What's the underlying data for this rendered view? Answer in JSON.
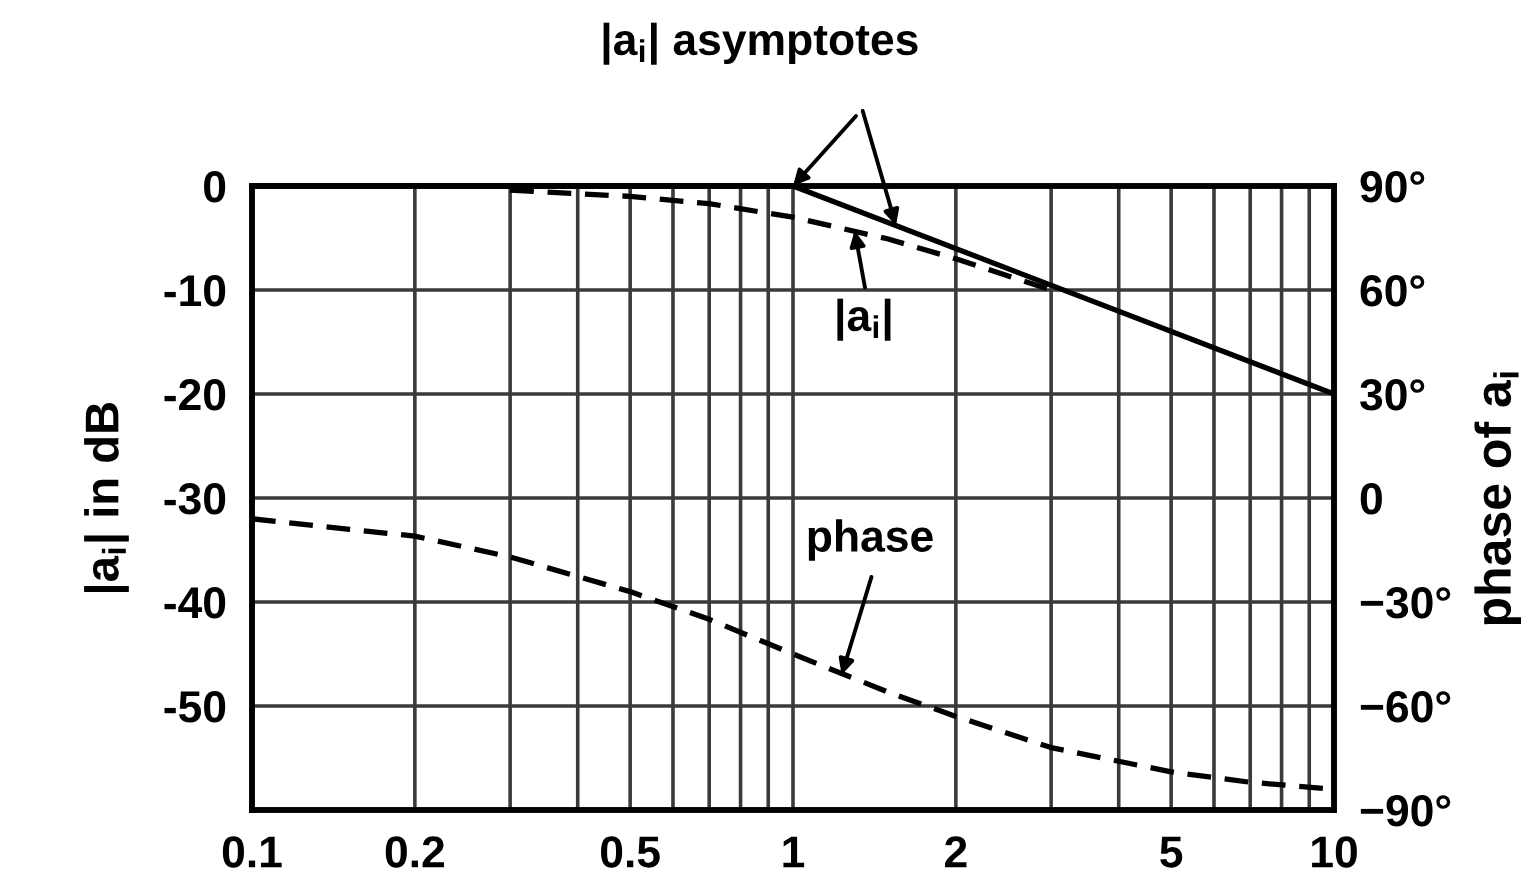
{
  "chart_data": {
    "type": "line",
    "ylabel": "|a$_{i}$| in dB",
    "y2label": "phase of a$_{i}$",
    "log": "x",
    "grid": true,
    "xlim": [
      0.1,
      10
    ],
    "xticks": [
      0.1,
      0.2,
      {
        "value": 0.3,
        "label": null
      },
      {
        "value": 0.4,
        "label": null
      },
      0.5,
      {
        "value": 0.6,
        "label": null
      },
      {
        "value": 0.7,
        "label": null
      },
      {
        "value": 0.8,
        "label": null
      },
      {
        "value": 0.9,
        "label": null
      },
      1,
      2,
      {
        "value": 3,
        "label": null
      },
      {
        "value": 4,
        "label": null
      },
      5,
      {
        "value": 6,
        "label": null
      },
      {
        "value": 7,
        "label": null
      },
      {
        "value": 8,
        "label": null
      },
      {
        "value": 9,
        "label": null
      },
      10
    ],
    "ylim": [
      -60,
      0
    ],
    "yticks": [
      -50,
      -40,
      -30,
      -20,
      -10,
      0
    ],
    "y2lim": [
      -90,
      90
    ],
    "y2ticks": [
      {
        "value": -90,
        "label": "−90°"
      },
      {
        "value": -60,
        "label": "−60°"
      },
      {
        "value": -30,
        "label": "−30°"
      },
      0,
      {
        "value": 30,
        "label": "30°"
      },
      {
        "value": 60,
        "label": "60°"
      },
      {
        "value": 90,
        "label": "90°"
      }
    ],
    "series": [
      {
        "color": "#000000",
        "line_style": "solid",
        "x": [
          0.1,
          1,
          10
        ],
        "values": [
          0,
          0,
          -20
        ]
      },
      {
        "color": "#000000",
        "line_style": "dashed",
        "x": [
          0.3,
          0.5,
          0.7,
          1,
          1.5,
          2,
          3
        ],
        "values": [
          -0.4,
          -1,
          -1.7,
          -3,
          -5.1,
          -7,
          -10
        ]
      },
      {
        "color": "#000000",
        "line_style": "dashed",
        "axis": "y2",
        "x": [
          0.1,
          0.15,
          0.2,
          0.3,
          0.5,
          0.7,
          1,
          1.5,
          2,
          3,
          5,
          7,
          10
        ],
        "values": [
          -6,
          -9,
          -11,
          -17,
          -27,
          -35,
          -45,
          -56,
          -63,
          -72,
          -79,
          -82,
          -84
        ]
      }
    ],
    "annotations": [
      {
        "text": "|a$_{i}$| asymptotes",
        "x": 1.55,
        "y": -3.8
      },
      {
        "text": "|a$_{i}$|",
        "x": 1.3,
        "y": -4.3
      },
      {
        "text": "phase",
        "x": 1.23,
        "y": -47
      }
    ]
  }
}
